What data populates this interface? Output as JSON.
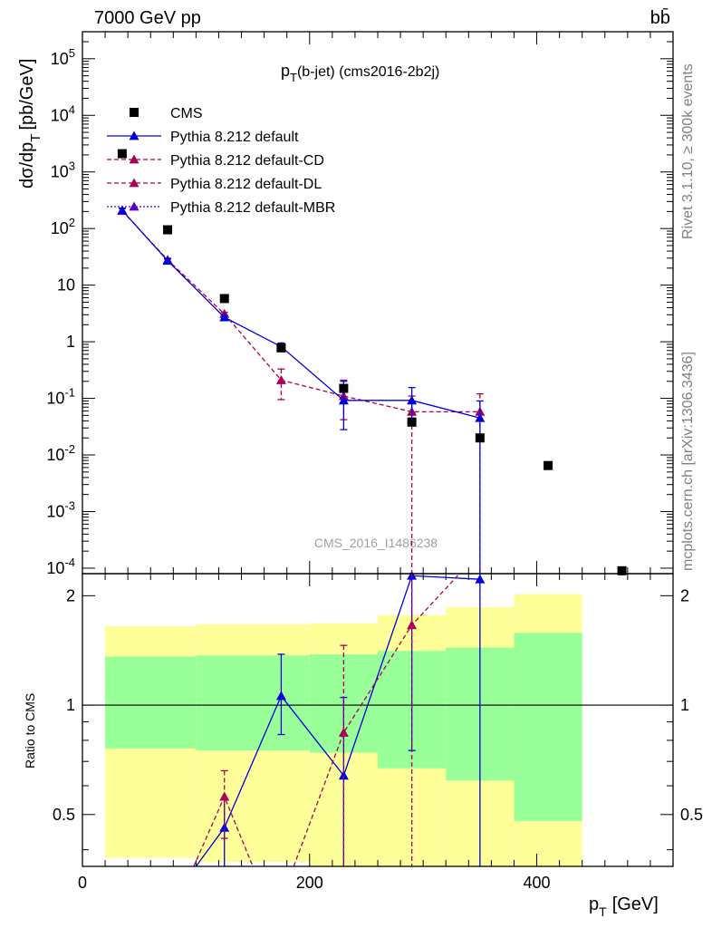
{
  "header": {
    "process": "7000 GeV pp",
    "final_state": "bb̄",
    "plot_title_main": "p",
    "plot_title_sub": "T",
    "plot_title_rest": "(b-jet) (cms2016-2b2j)",
    "watermark": "CMS_2016_I1486238",
    "side_rivet": "Rivet 3.1.10, ≥ 300k events",
    "side_mcplots": "mcplots.cern.ch [arXiv:1306.3436]"
  },
  "axes": {
    "ylabel_top": "dσ/dp",
    "ylabel_top_sub": "T",
    "ylabel_top_units": "[pb/GeV]",
    "ylabel_ratio": "Ratio to CMS",
    "xlabel_main": "p",
    "xlabel_sub": "T",
    "xlabel_units": "[GeV]"
  },
  "chart_data": [
    {
      "type": "scatter",
      "title": "p_T(b-jet) (cms2016-2b2j)",
      "xlabel": "p_T [GeV]",
      "ylabel": "dσ/dp_T [pb/GeV]",
      "xlim": [
        0,
        520
      ],
      "ylim": [
        8e-05,
        300000
      ],
      "yscale": "log",
      "legend_position": "top-left",
      "x_ticks": [
        "0",
        "200",
        "400"
      ],
      "y_ticks": [
        "10^5",
        "10^4",
        "10^3",
        "10^2",
        "10",
        "1",
        "10^-1",
        "10^-2",
        "10^-3",
        "10^-4"
      ],
      "series": [
        {
          "name": "CMS",
          "color": "#000000",
          "marker": "square",
          "x": [
            35,
            75,
            125,
            175,
            230,
            290,
            350,
            410,
            475
          ],
          "y": [
            2100,
            95,
            5.8,
            0.78,
            0.15,
            0.038,
            0.02,
            0.0065,
            9e-05
          ]
        },
        {
          "name": "Pythia 8.212 default",
          "color": "#0000dd",
          "line": "solid",
          "marker": "triangle",
          "x": [
            35,
            75,
            125,
            175,
            230,
            290,
            350
          ],
          "y": [
            210,
            27,
            2.7,
            0.82,
            0.092,
            0.092,
            0.045
          ],
          "err_high": [
            230,
            29,
            2.9,
            0.95,
            0.2,
            0.155,
            0.09
          ],
          "err_low": [
            190,
            25,
            2.5,
            0.7,
            0.028,
            0.045,
            5e-05
          ]
        },
        {
          "name": "Pythia 8.212 default-CD",
          "color": "#aa0055",
          "line": "dashed",
          "marker": "triangle",
          "x": [
            35,
            75,
            125,
            175,
            230,
            290,
            350
          ],
          "y": [
            205,
            28,
            3.1,
            0.21,
            0.11,
            0.058,
            0.058
          ],
          "err_high": [
            225,
            30,
            3.3,
            0.33,
            0.21,
            0.11,
            0.12
          ],
          "err_low": [
            185,
            26,
            2.9,
            0.095,
            0.042,
            5e-05,
            5e-05
          ]
        },
        {
          "name": "Pythia 8.212 default-DL",
          "color": "#aa0055",
          "line": "dashed",
          "marker": "triangle",
          "x": [
            35,
            75,
            125,
            175,
            230,
            290,
            350
          ],
          "y": [
            205,
            28,
            3.1,
            0.21,
            0.11,
            0.058,
            0.058
          ]
        },
        {
          "name": "Pythia 8.212 default-MBR",
          "color": "#5500cc",
          "line": "dotted",
          "marker": "triangle",
          "x": [
            35,
            75,
            125,
            175,
            230,
            290,
            350
          ],
          "y": [
            205,
            28,
            3.1,
            0.21,
            0.11,
            0.058,
            0.058
          ]
        }
      ]
    },
    {
      "type": "line",
      "title": "",
      "xlabel": "p_T [GeV]",
      "ylabel": "Ratio to CMS",
      "xlim": [
        0,
        520
      ],
      "ylim": [
        0.36,
        2.3
      ],
      "y_ticks": [
        "0.5",
        "1",
        "2"
      ],
      "x_ticks": [
        "0",
        "200",
        "400"
      ],
      "bands": {
        "bins": [
          [
            20,
            100
          ],
          [
            100,
            200
          ],
          [
            200,
            260
          ],
          [
            260,
            320
          ],
          [
            320,
            380
          ],
          [
            380,
            440
          ]
        ],
        "green_low": [
          0.76,
          0.75,
          0.74,
          0.67,
          0.62,
          0.48
        ],
        "green_high": [
          1.36,
          1.37,
          1.38,
          1.41,
          1.44,
          1.58
        ],
        "yellow_low": [
          0.38,
          0.37,
          0.36,
          0.36,
          0.36,
          0.36
        ],
        "yellow_high": [
          1.65,
          1.67,
          1.68,
          1.77,
          1.86,
          2.02
        ],
        "green_color": "#99ff99",
        "yellow_color": "#ffff99"
      },
      "series": [
        {
          "name": "Pythia 8.212 default",
          "color": "#0000dd",
          "line": "solid",
          "x": [
            125,
            175,
            230,
            290,
            350
          ],
          "y": [
            0.46,
            1.06,
            0.64,
            2.27,
            2.22
          ],
          "err_high": [
            0.55,
            1.38,
            1.05,
            2.3,
            2.3
          ],
          "err_low": [
            0.36,
            0.83,
            0.36,
            0.75,
            0.36
          ],
          "extra_lines": [
            [
              [
                100,
                0.36
              ],
              [
                125,
                0.46
              ]
            ]
          ]
        },
        {
          "name": "Pythia 8.212 default-CD",
          "color": "#aa0055",
          "line": "dashed",
          "x": [
            125,
            230,
            290
          ],
          "y": [
            0.56,
            0.84,
            1.66
          ],
          "err_high": [
            0.66,
            1.46,
            2.3
          ],
          "err_low": [
            0.43,
            0.36,
            0.36
          ],
          "extra_lines": [
            [
              [
                98,
                0.36
              ],
              [
                125,
                0.56
              ],
              [
                150,
                0.36
              ]
            ],
            [
              [
                186,
                0.36
              ],
              [
                230,
                0.84
              ],
              [
                290,
                1.66
              ],
              [
                332,
                2.3
              ]
            ]
          ]
        }
      ]
    }
  ]
}
